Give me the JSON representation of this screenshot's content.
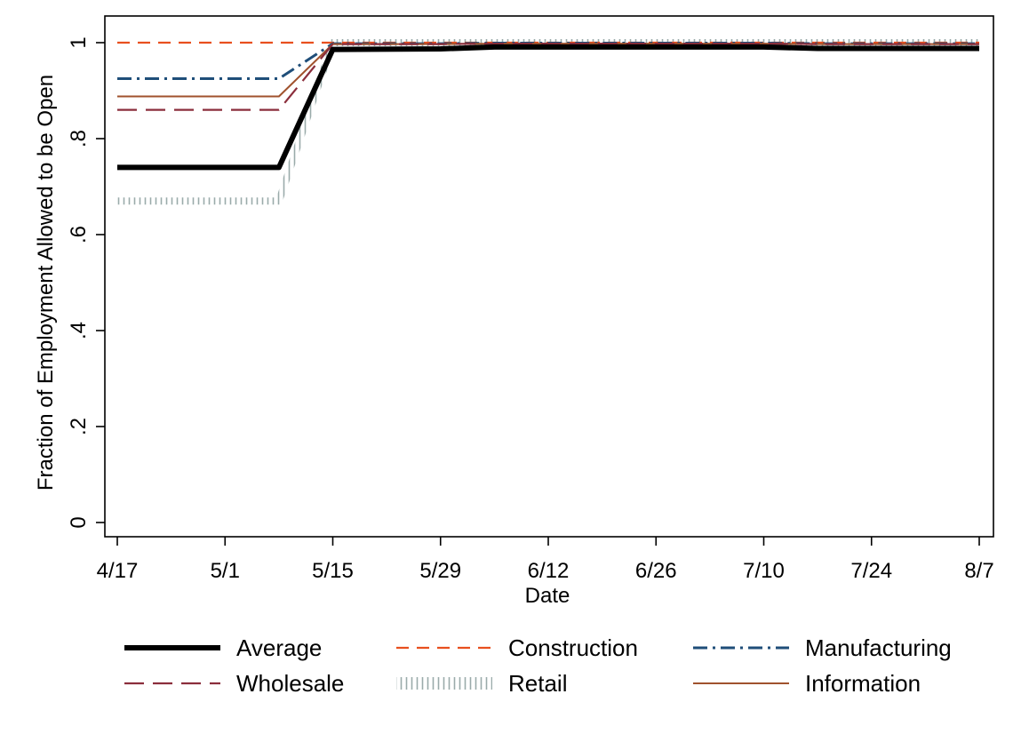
{
  "chart_data": {
    "type": "line",
    "title": "",
    "xlabel": "Date",
    "ylabel": "Fraction of Employment Allowed to be Open",
    "x": [
      "4/17",
      "5/8",
      "5/15",
      "5/29",
      "6/5",
      "6/12",
      "6/26",
      "7/10",
      "7/17",
      "7/24",
      "8/7"
    ],
    "x_tick_labels": [
      "4/17",
      "5/1",
      "5/15",
      "5/29",
      "6/12",
      "6/26",
      "7/10",
      "7/24",
      "8/7"
    ],
    "y_tick_labels": [
      "0",
      ".2",
      ".4",
      ".6",
      ".8",
      "1"
    ],
    "y_ticks": [
      0,
      0.2,
      0.4,
      0.6,
      0.8,
      1
    ],
    "ylim": [
      0,
      1
    ],
    "grid": false,
    "legend_position": "bottom",
    "series": [
      {
        "name": "Average",
        "color": "#000000",
        "values": [
          0.74,
          0.74,
          0.986,
          0.987,
          0.991,
          0.991,
          0.991,
          0.991,
          0.988,
          0.988,
          0.988
        ]
      },
      {
        "name": "Construction",
        "color": "#e8501f",
        "values": [
          1.0,
          1.0,
          1.0,
          1.0,
          1.0,
          1.0,
          1.0,
          1.0,
          1.0,
          1.0,
          1.0
        ]
      },
      {
        "name": "Manufacturing",
        "color": "#1f4e79",
        "values": [
          0.925,
          0.925,
          0.998,
          0.998,
          0.999,
          0.999,
          0.999,
          0.999,
          0.998,
          0.998,
          0.998
        ]
      },
      {
        "name": "Wholesale",
        "color": "#8b2e3c",
        "values": [
          0.86,
          0.86,
          0.997,
          0.997,
          0.998,
          0.998,
          0.998,
          0.998,
          0.997,
          0.997,
          0.997
        ]
      },
      {
        "name": "Retail",
        "color": "#9aabaa",
        "values": [
          0.67,
          0.67,
          1.0,
          1.0,
          1.0,
          1.0,
          1.0,
          1.0,
          1.0,
          1.0,
          1.0
        ]
      },
      {
        "name": "Information",
        "color": "#a0522d",
        "values": [
          0.888,
          0.888,
          0.997,
          0.997,
          0.998,
          0.998,
          0.998,
          0.998,
          0.997,
          0.997,
          0.997
        ]
      }
    ]
  }
}
